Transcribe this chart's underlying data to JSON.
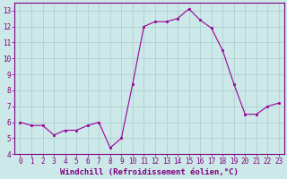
{
  "x": [
    0,
    1,
    2,
    3,
    4,
    5,
    6,
    7,
    8,
    9,
    10,
    11,
    12,
    13,
    14,
    15,
    16,
    17,
    18,
    19,
    20,
    21,
    22,
    23
  ],
  "y": [
    6.0,
    5.8,
    5.8,
    5.2,
    5.5,
    5.5,
    5.8,
    6.0,
    4.4,
    5.0,
    8.4,
    12.0,
    12.3,
    12.3,
    12.5,
    13.1,
    12.4,
    11.9,
    10.5,
    8.4,
    6.5,
    6.5,
    7.0,
    7.2
  ],
  "line_color": "#990099",
  "marker": "s",
  "marker_size": 2,
  "bg_color": "#cce8e8",
  "grid_color": "#aacccc",
  "xlabel": "Windchill (Refroidissement éolien,°C)",
  "ylabel": "",
  "title": "",
  "xlim": [
    -0.5,
    23.5
  ],
  "ylim": [
    4,
    13.5
  ],
  "yticks": [
    4,
    5,
    6,
    7,
    8,
    9,
    10,
    11,
    12,
    13
  ],
  "xticks": [
    0,
    1,
    2,
    3,
    4,
    5,
    6,
    7,
    8,
    9,
    10,
    11,
    12,
    13,
    14,
    15,
    16,
    17,
    18,
    19,
    20,
    21,
    22,
    23
  ],
  "tick_color": "#800080",
  "label_color": "#800080",
  "axis_color": "#800080",
  "tick_fontsize": 5.5,
  "xlabel_fontsize": 6.5
}
